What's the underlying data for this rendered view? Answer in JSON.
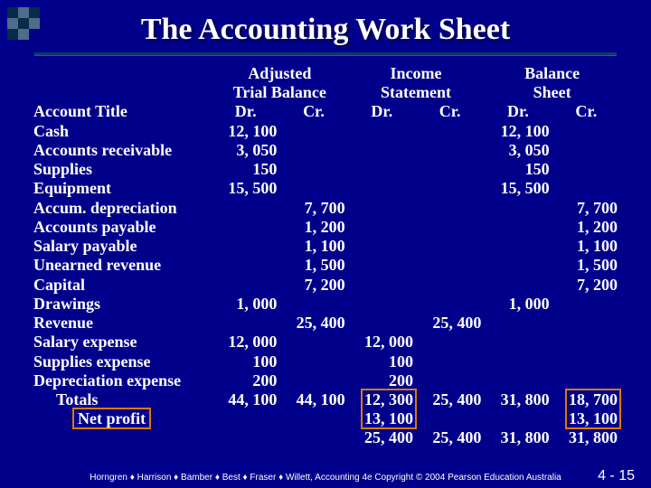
{
  "title": "The Accounting Work Sheet",
  "colors": {
    "background": "#00008b",
    "title_text": "#ffffff",
    "body_text": "#ffffff",
    "highlight_border": "#d97b00",
    "rule": "#0a3b6b"
  },
  "typography": {
    "title_fontsize_pt": 26,
    "body_fontsize_pt": 14,
    "footer_fontsize_pt": 8
  },
  "headers": {
    "group1": "Adjusted",
    "group1b": "Trial Balance",
    "group2": "Income",
    "group2b": "Statement",
    "group3": "Balance",
    "group3b": "Sheet",
    "dr": "Dr.",
    "cr": "Cr.",
    "acct": "Account Title"
  },
  "rows": [
    {
      "title": "Cash",
      "atb_dr": "12, 100",
      "atb_cr": "",
      "is_dr": "",
      "is_cr": "",
      "bs_dr": "12, 100",
      "bs_cr": ""
    },
    {
      "title": "Accounts receivable",
      "atb_dr": "3, 050",
      "atb_cr": "",
      "is_dr": "",
      "is_cr": "",
      "bs_dr": "3, 050",
      "bs_cr": ""
    },
    {
      "title": "Supplies",
      "atb_dr": "150",
      "atb_cr": "",
      "is_dr": "",
      "is_cr": "",
      "bs_dr": "150",
      "bs_cr": ""
    },
    {
      "title": "Equipment",
      "atb_dr": "15, 500",
      "atb_cr": "",
      "is_dr": "",
      "is_cr": "",
      "bs_dr": "15, 500",
      "bs_cr": ""
    },
    {
      "title": "Accum. depreciation",
      "atb_dr": "",
      "atb_cr": "7, 700",
      "is_dr": "",
      "is_cr": "",
      "bs_dr": "",
      "bs_cr": "7, 700"
    },
    {
      "title": "Accounts payable",
      "atb_dr": "",
      "atb_cr": "1, 200",
      "is_dr": "",
      "is_cr": "",
      "bs_dr": "",
      "bs_cr": "1, 200"
    },
    {
      "title": "Salary payable",
      "atb_dr": "",
      "atb_cr": "1, 100",
      "is_dr": "",
      "is_cr": "",
      "bs_dr": "",
      "bs_cr": "1, 100"
    },
    {
      "title": "Unearned revenue",
      "atb_dr": "",
      "atb_cr": "1, 500",
      "is_dr": "",
      "is_cr": "",
      "bs_dr": "",
      "bs_cr": "1, 500"
    },
    {
      "title": "Capital",
      "atb_dr": "",
      "atb_cr": "7, 200",
      "is_dr": "",
      "is_cr": "",
      "bs_dr": "",
      "bs_cr": "7, 200"
    },
    {
      "title": "Drawings",
      "atb_dr": "1, 000",
      "atb_cr": "",
      "is_dr": "",
      "is_cr": "",
      "bs_dr": "1, 000",
      "bs_cr": ""
    },
    {
      "title": "Revenue",
      "atb_dr": "",
      "atb_cr": "25, 400",
      "is_dr": "",
      "is_cr": "25, 400",
      "bs_dr": "",
      "bs_cr": ""
    },
    {
      "title": "Salary expense",
      "atb_dr": "12, 000",
      "atb_cr": "",
      "is_dr": "12, 000",
      "is_cr": "",
      "bs_dr": "",
      "bs_cr": ""
    },
    {
      "title": "Supplies expense",
      "atb_dr": "100",
      "atb_cr": "",
      "is_dr": "100",
      "is_cr": "",
      "bs_dr": "",
      "bs_cr": ""
    },
    {
      "title": "Depreciation expense",
      "atb_dr": "200",
      "atb_cr": "",
      "is_dr": "200",
      "is_cr": "",
      "bs_dr": "",
      "bs_cr": ""
    }
  ],
  "totals": {
    "label": "Totals",
    "atb_dr": "44, 100",
    "atb_cr": "44, 100",
    "is_dr": "12, 300",
    "is_cr": "25, 400",
    "bs_dr": "31, 800",
    "bs_cr": "18, 700"
  },
  "netprofit": {
    "label": "Net profit",
    "is_dr": "13, 100",
    "bs_cr": "13, 100",
    "sum_is_dr": "25, 400",
    "sum_is_cr": "25, 400",
    "sum_bs_dr": "31, 800",
    "sum_bs_cr": "31, 800"
  },
  "footer": "Horngren ♦ Harrison ♦ Bamber ♦ Best ♦ Fraser ♦ Willett, Accounting 4e Copyright © 2004 Pearson Education Australia",
  "pagenum": "4 - 15"
}
